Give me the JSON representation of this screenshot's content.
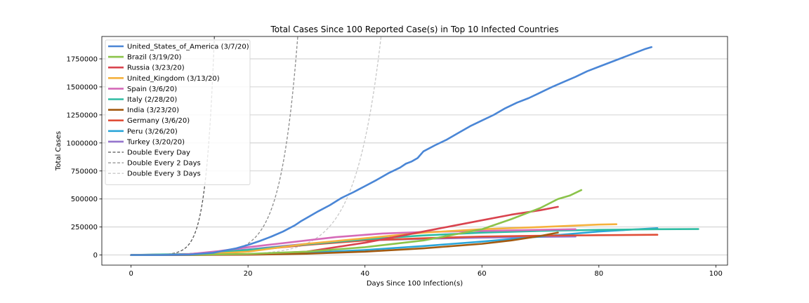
{
  "chart_data": {
    "type": "line",
    "title": "Total Cases Since 100 Reported Case(s) in Top 10 Infected Countries",
    "xlabel": "Days Since 100 Infection(s)",
    "ylabel": "Total Cases",
    "xlim": [
      -5,
      102
    ],
    "ylim": [
      -90000,
      1950000
    ],
    "xticks": [
      0,
      20,
      40,
      60,
      80,
      100
    ],
    "yticks": [
      0,
      250000,
      500000,
      750000,
      1000000,
      1250000,
      1500000,
      1750000
    ],
    "xtick_labels": [
      "0",
      "20",
      "40",
      "60",
      "80",
      "100"
    ],
    "ytick_labels": [
      "0",
      "250000",
      "500000",
      "750000",
      "1000000",
      "1250000",
      "1500000",
      "1750000"
    ],
    "grid": "horizontal",
    "legend_placement": "top-left",
    "series": [
      {
        "name": "United_States_of_America (3/7/20)",
        "color": "#4a86d6",
        "style": "solid",
        "x": [
          0,
          5,
          10,
          14,
          16,
          18,
          20,
          22,
          24,
          26,
          28,
          29,
          30,
          32,
          34,
          36,
          38,
          40,
          42,
          44,
          45,
          46,
          47,
          48,
          49,
          50,
          52,
          54,
          56,
          58,
          60,
          62,
          64,
          66,
          68,
          70,
          72,
          74,
          76,
          78,
          80,
          82,
          84,
          86,
          88,
          89
        ],
        "y": [
          100,
          600,
          4000,
          20000,
          40000,
          60000,
          90000,
          125000,
          165000,
          210000,
          265000,
          300000,
          330000,
          390000,
          445000,
          510000,
          560000,
          615000,
          670000,
          730000,
          755000,
          780000,
          815000,
          835000,
          865000,
          925000,
          980000,
          1030000,
          1090000,
          1150000,
          1200000,
          1250000,
          1310000,
          1360000,
          1400000,
          1450000,
          1500000,
          1545000,
          1590000,
          1640000,
          1680000,
          1720000,
          1760000,
          1800000,
          1840000,
          1855000
        ]
      },
      {
        "name": "Brazil (3/19/20)",
        "color": "#8bc34a",
        "style": "solid",
        "x": [
          0,
          10,
          20,
          30,
          40,
          50,
          60,
          65,
          70,
          73,
          75,
          77
        ],
        "y": [
          100,
          2000,
          10000,
          30000,
          70000,
          130000,
          230000,
          320000,
          420000,
          500000,
          530000,
          580000
        ]
      },
      {
        "name": "Russia (3/23/20)",
        "color": "#d9434e",
        "style": "solid",
        "x": [
          0,
          10,
          20,
          30,
          40,
          45,
          50,
          55,
          60,
          65,
          70,
          73
        ],
        "y": [
          100,
          1000,
          6000,
          30000,
          110000,
          160000,
          210000,
          260000,
          310000,
          360000,
          400000,
          430000
        ]
      },
      {
        "name": "United_Kingdom (3/13/20)",
        "color": "#f5b13d",
        "style": "solid",
        "x": [
          0,
          10,
          20,
          30,
          40,
          50,
          60,
          70,
          80,
          83
        ],
        "y": [
          100,
          3000,
          30000,
          100000,
          150000,
          200000,
          230000,
          250000,
          272000,
          275000
        ]
      },
      {
        "name": "Spain (3/6/20)",
        "color": "#d56ab8",
        "style": "solid",
        "x": [
          0,
          5,
          10,
          15,
          20,
          25,
          30,
          35,
          40,
          43,
          50,
          60,
          70,
          76
        ],
        "y": [
          100,
          1000,
          8000,
          35000,
          70000,
          100000,
          130000,
          160000,
          180000,
          192000,
          205000,
          215000,
          225000,
          230000
        ]
      },
      {
        "name": "Italy (2/28/20)",
        "color": "#2ebca3",
        "style": "solid",
        "x": [
          0,
          10,
          15,
          20,
          30,
          40,
          50,
          60,
          70,
          80,
          90,
          97
        ],
        "y": [
          100,
          10000,
          25000,
          45000,
          95000,
          140000,
          175000,
          200000,
          215000,
          225000,
          230000,
          232000
        ]
      },
      {
        "name": "India (3/23/20)",
        "color": "#a35a10",
        "style": "solid",
        "x": [
          0,
          10,
          20,
          30,
          40,
          50,
          60,
          65,
          70,
          73
        ],
        "y": [
          100,
          500,
          3000,
          12000,
          30000,
          60000,
          100000,
          130000,
          170000,
          200000
        ]
      },
      {
        "name": "Germany (3/6/20)",
        "color": "#e04e38",
        "style": "solid",
        "x": [
          0,
          10,
          15,
          20,
          30,
          40,
          50,
          60,
          70,
          80,
          90
        ],
        "y": [
          100,
          5000,
          20000,
          40000,
          90000,
          130000,
          150000,
          165000,
          172000,
          177000,
          181000
        ]
      },
      {
        "name": "Peru (3/26/20)",
        "color": "#2ba6d9",
        "style": "solid",
        "x": [
          0,
          10,
          20,
          30,
          40,
          50,
          60,
          70,
          80,
          90
        ],
        "y": [
          100,
          800,
          5000,
          20000,
          45000,
          80000,
          120000,
          165000,
          210000,
          240000
        ]
      },
      {
        "name": "Turkey (3/20/20)",
        "color": "#9575cd",
        "style": "solid",
        "x": [
          0,
          10,
          20,
          30,
          40,
          50,
          60,
          70,
          76
        ],
        "y": [
          100,
          8000,
          50000,
          100000,
          130000,
          145000,
          155000,
          162000,
          165000
        ]
      },
      {
        "name": "Double Every Day",
        "color": "#555555",
        "style": "dashed",
        "doubling_days": 1,
        "x_max": 21
      },
      {
        "name": "Double Every 2 Days",
        "color": "#8c8c8c",
        "style": "dashed",
        "doubling_days": 2,
        "x_max": 42
      },
      {
        "name": "Double Every 3 Days",
        "color": "#c8c8c8",
        "style": "dashed",
        "doubling_days": 3,
        "x_max": 62
      }
    ]
  }
}
